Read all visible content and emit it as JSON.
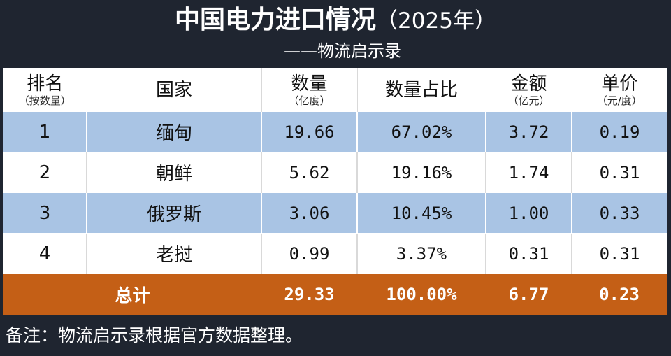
{
  "title": {
    "main": "中国电力进口情况",
    "year": "（2025年）"
  },
  "subtitle": "——物流启示录",
  "table": {
    "headers": [
      {
        "label": "排名",
        "sub": "（按数量）"
      },
      {
        "label": "国家",
        "sub": ""
      },
      {
        "label": "数量",
        "sub": "（亿度）"
      },
      {
        "label": "数量占比",
        "sub": ""
      },
      {
        "label": "金额",
        "sub": "（亿元）"
      },
      {
        "label": "单价",
        "sub": "（元/度）"
      }
    ],
    "rows": [
      {
        "rank": "1",
        "country": "缅甸",
        "quantity": "19.66",
        "share": "67.02%",
        "amount": "3.72",
        "unit_price": "0.19"
      },
      {
        "rank": "2",
        "country": "朝鲜",
        "quantity": "5.62",
        "share": "19.16%",
        "amount": "1.74",
        "unit_price": "0.31"
      },
      {
        "rank": "3",
        "country": "俄罗斯",
        "quantity": "3.06",
        "share": "10.45%",
        "amount": "1.00",
        "unit_price": "0.33"
      },
      {
        "rank": "4",
        "country": "老挝",
        "quantity": "0.99",
        "share": "3.37%",
        "amount": "0.31",
        "unit_price": "0.31"
      }
    ],
    "total": {
      "label": "总计",
      "quantity": "29.33",
      "share": "100.00%",
      "amount": "6.77",
      "unit_price": "0.23"
    }
  },
  "note": "备注：物流启示录根据官方数据整理。",
  "colors": {
    "background": "#1f2530",
    "row_blue": "#a9c4e4",
    "row_white": "#ffffff",
    "total_row": "#c45f16"
  }
}
